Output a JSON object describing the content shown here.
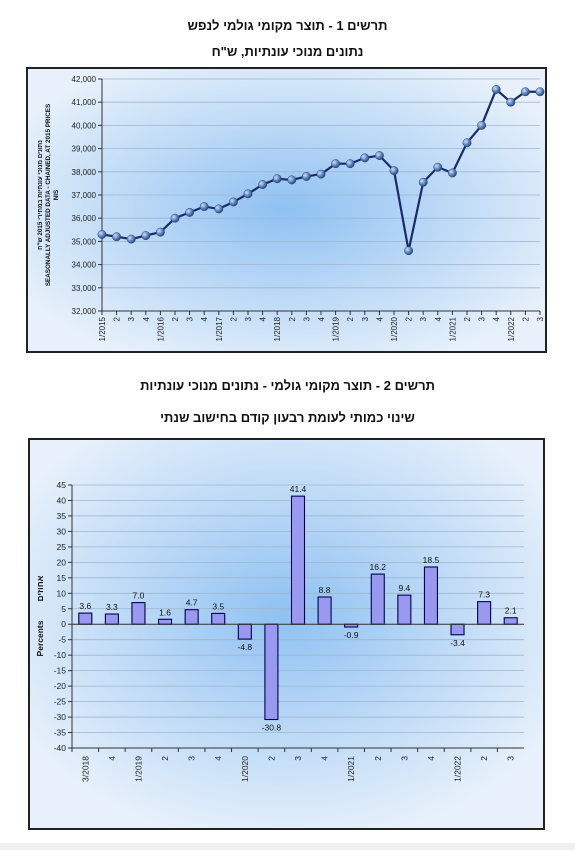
{
  "charts": {
    "chart1": {
      "title": "תרשים 1 - תוצר מקומי גולמי לנפש",
      "subtitle": "נתונים מנוכי עונתיות, ש\"ח",
      "ylabel_lines": [
        "נתונים מנוכי עונתיות במחירי 2015 ש\"ח",
        "SEASONALLY ADJUSTED DATA - CHAINED, AT 2015 PRICES",
        "NIS"
      ]
    },
    "chart2": {
      "title": "תרשים 2 - תוצר מקומי גולמי - נתונים מנוכי עונתיות",
      "subtitle": "שינוי כמותי לעומת רבעון קודם בחישוב שנתי",
      "ylabel_he": "אחוזים",
      "ylabel_en": "Percents"
    }
  },
  "chart_data": [
    {
      "type": "line",
      "title": "תרשים 1 - תוצר מקומי גולמי לנפש",
      "subtitle": "נתונים מנוכי עונתיות, ש\"ח",
      "ylabel": "נתונים מנוכי עונתיות במחירי 2015 ש\"ח / SEASONALLY ADJUSTED DATA - CHAINED, AT 2015 PRICES / NIS",
      "ylim": [
        32000,
        42000
      ],
      "yticks": [
        "32,000",
        "33,000",
        "34,000",
        "35,000",
        "36,000",
        "37,000",
        "38,000",
        "39,000",
        "40,000",
        "41,000",
        "42,000"
      ],
      "categories": [
        "1/2015",
        "2",
        "3",
        "4",
        "1/2016",
        "2",
        "3",
        "4",
        "1/2017",
        "2",
        "3",
        "4",
        "1/2018",
        "2",
        "3",
        "4",
        "1/2019",
        "2",
        "3",
        "4",
        "1/2020",
        "2",
        "3",
        "4",
        "1/2021",
        "2",
        "3",
        "4",
        "1/2022",
        "2",
        "3"
      ],
      "series": [
        {
          "values": [
            35300,
            35200,
            35100,
            35250,
            35400,
            36000,
            36250,
            36500,
            36400,
            36700,
            37050,
            37450,
            37700,
            37650,
            37800,
            37900,
            38350,
            38350,
            38600,
            38700,
            38050,
            34600,
            37550,
            38200,
            37950,
            39250,
            40000,
            41550,
            41000,
            41450,
            41450
          ]
        }
      ],
      "grid": true,
      "colors": {
        "line": "#1a2a6b",
        "marker": "#6a8bc0"
      }
    },
    {
      "type": "bar",
      "title": "תרשים 2 - תוצר מקומי גולמי - נתונים מנוכי עונתיות",
      "subtitle": "שינוי כמותי לעומת רבעון קודם בחישוב שנתי",
      "ylabel": "אחוזים Percents",
      "ylim": [
        -40,
        45
      ],
      "yticks": [
        "45",
        "40",
        "35",
        "30",
        "25",
        "20",
        "15",
        "10",
        "5",
        "0",
        "-5",
        "-10",
        "-15",
        "-20",
        "-25",
        "-30",
        "-35",
        "-40"
      ],
      "categories": [
        "3/2018",
        "4",
        "1/2019",
        "2",
        "3",
        "4",
        "1/2020",
        "2",
        "3",
        "4",
        "1/2021",
        "2",
        "3",
        "4",
        "1/2022",
        "2",
        "3"
      ],
      "values": [
        3.6,
        3.3,
        7.0,
        1.6,
        4.7,
        3.5,
        -4.8,
        -30.8,
        41.4,
        8.8,
        -0.9,
        16.2,
        9.4,
        18.5,
        -3.4,
        7.3,
        2.1
      ],
      "data_labels": [
        "3.6",
        "3.3",
        "7.0",
        "1.6",
        "4.7",
        "3.5",
        "-4.8",
        "-30.8",
        "41.4",
        "8.8",
        "-0.9",
        "16.2",
        "9.4",
        "18.5",
        "-3.4",
        "7.3",
        "2.1"
      ],
      "grid": true,
      "colors": {
        "bar": "#9999f0",
        "border": "#000050"
      }
    }
  ]
}
